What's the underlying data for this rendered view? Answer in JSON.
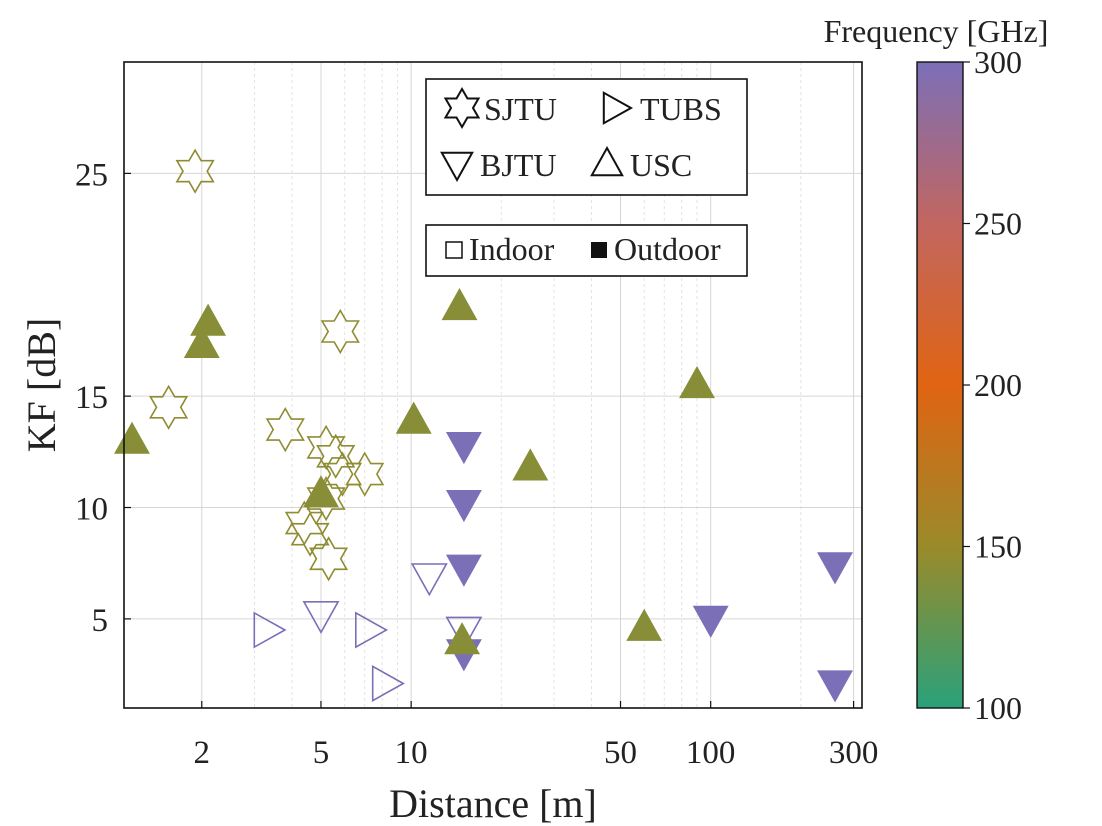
{
  "chart_data": {
    "type": "scatter",
    "title": "",
    "xlabel": "Distance [m]",
    "ylabel": "KF [dB]",
    "x_scale": "log",
    "xlim": [
      1.1,
      320
    ],
    "ylim": [
      1.0,
      30.0
    ],
    "x_ticks": [
      2,
      5,
      10,
      50,
      100,
      300
    ],
    "x_tick_labels": [
      "2",
      "5",
      "10",
      "50",
      "100",
      "300"
    ],
    "y_ticks": [
      5,
      10,
      15,
      25
    ],
    "y_tick_labels": [
      "5",
      "10",
      "15",
      "25"
    ],
    "grid": true,
    "colorbar": {
      "label": "Frequency [GHz]",
      "range": [
        100,
        300
      ],
      "ticks": [
        100,
        150,
        200,
        250,
        300
      ],
      "tick_labels": [
        "100",
        "150",
        "200",
        "250",
        "300"
      ],
      "colors": [
        "#2aa17a",
        "#9a8a2a",
        "#e06412",
        "#c26660",
        "#7b6fb8"
      ]
    },
    "legend": {
      "placement": "top-center",
      "sources": [
        {
          "label": "SJTU",
          "marker": "hexagram"
        },
        {
          "label": "TUBS",
          "marker": "triangle-right"
        },
        {
          "label": "BJTU",
          "marker": "triangle-down"
        },
        {
          "label": "USC",
          "marker": "triangle-up"
        }
      ],
      "environments": [
        {
          "label": "Indoor",
          "fill": "hollow"
        },
        {
          "label": "Outdoor",
          "fill": "filled"
        }
      ]
    },
    "series": [
      {
        "name": "SJTU",
        "marker": "hexagram",
        "fill": "hollow",
        "frequency_ghz": 145,
        "points": [
          {
            "x": 1.9,
            "y": 25.1
          },
          {
            "x": 5.8,
            "y": 17.9
          },
          {
            "x": 1.55,
            "y": 14.5
          },
          {
            "x": 3.8,
            "y": 13.5
          },
          {
            "x": 5.2,
            "y": 12.7
          },
          {
            "x": 5.6,
            "y": 12.3
          },
          {
            "x": 5.9,
            "y": 11.5
          },
          {
            "x": 7.0,
            "y": 11.5
          },
          {
            "x": 5.2,
            "y": 10.4
          },
          {
            "x": 4.4,
            "y": 9.3
          },
          {
            "x": 4.6,
            "y": 8.8
          },
          {
            "x": 5.3,
            "y": 7.7
          }
        ]
      },
      {
        "name": "TUBS",
        "marker": "triangle-right",
        "fill": "hollow",
        "frequency_ghz": 300,
        "points": [
          {
            "x": 3.3,
            "y": 4.5
          },
          {
            "x": 7.2,
            "y": 4.5
          },
          {
            "x": 8.2,
            "y": 2.1
          }
        ]
      },
      {
        "name": "BJTU",
        "marker": "triangle-down",
        "fill": "hollow",
        "frequency_ghz": 300,
        "points": [
          {
            "x": 5.0,
            "y": 5.2
          },
          {
            "x": 11.5,
            "y": 6.9
          },
          {
            "x": 15.0,
            "y": 4.5
          }
        ]
      },
      {
        "name": "BJTU",
        "marker": "triangle-down",
        "fill": "filled",
        "frequency_ghz": 300,
        "points": [
          {
            "x": 15.0,
            "y": 12.8
          },
          {
            "x": 15.0,
            "y": 10.2
          },
          {
            "x": 15.0,
            "y": 7.3
          },
          {
            "x": 15.0,
            "y": 3.5
          },
          {
            "x": 100.0,
            "y": 5.0
          },
          {
            "x": 260.0,
            "y": 7.4
          },
          {
            "x": 260.0,
            "y": 2.1
          }
        ]
      },
      {
        "name": "USC",
        "marker": "triangle-up",
        "fill": "filled",
        "frequency_ghz": 142,
        "points": [
          {
            "x": 1.17,
            "y": 13.0
          },
          {
            "x": 2.0,
            "y": 17.3
          },
          {
            "x": 2.1,
            "y": 18.3
          },
          {
            "x": 10.2,
            "y": 13.9
          },
          {
            "x": 14.5,
            "y": 19.0
          },
          {
            "x": 14.8,
            "y": 4.0
          },
          {
            "x": 25.0,
            "y": 11.8
          },
          {
            "x": 60.0,
            "y": 4.6
          },
          {
            "x": 90.0,
            "y": 15.5
          },
          {
            "x": 5.0,
            "y": 10.6
          }
        ]
      }
    ]
  }
}
